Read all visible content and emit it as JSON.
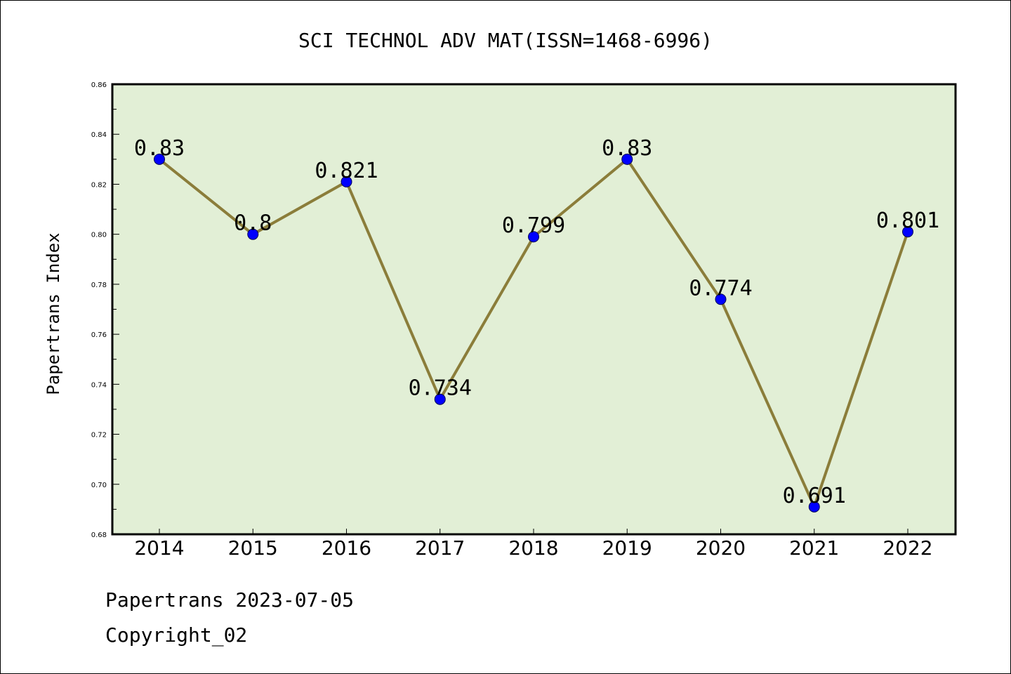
{
  "chart_data": {
    "type": "line",
    "title": "SCI TECHNOL ADV MAT(ISSN=1468-6996)",
    "ylabel": "Papertrans Index",
    "xlabel": "",
    "categories": [
      "2014",
      "2015",
      "2016",
      "2017",
      "2018",
      "2019",
      "2020",
      "2021",
      "2022"
    ],
    "values": [
      0.83,
      0.8,
      0.821,
      0.734,
      0.799,
      0.83,
      0.774,
      0.691,
      0.801
    ],
    "data_labels": [
      "0.83",
      "0.8",
      "0.821",
      "0.734",
      "0.799",
      "0.83",
      "0.774",
      "0.691",
      "0.801"
    ],
    "ylim": [
      0.68,
      0.86
    ],
    "yticks": [
      "0.68",
      "0.70",
      "0.72",
      "0.74",
      "0.76",
      "0.78",
      "0.80",
      "0.82",
      "0.84",
      "0.86"
    ],
    "grid": false,
    "colors": {
      "plot_background": "#e2efd6",
      "line": "#8b7d3a",
      "marker": "#0000ff"
    }
  },
  "footer": {
    "line1": "Papertrans 2023-07-05",
    "line2": "Copyright_02"
  }
}
